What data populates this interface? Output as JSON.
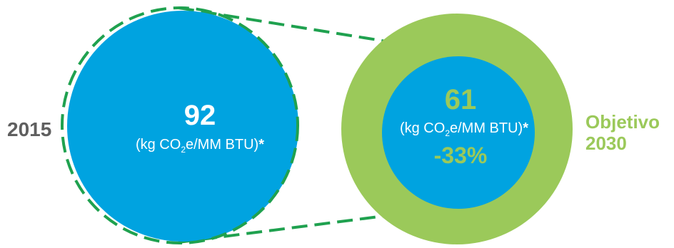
{
  "colors": {
    "blue": "#00a3e0",
    "green": "#9bc95a",
    "dash": "#1fa14f",
    "gray": "#5f5f5f"
  },
  "left": {
    "year": "2015",
    "value": "92",
    "unit_prefix": "(kg CO",
    "unit_sub": "2",
    "unit_suffix": "e/MM BTU)",
    "unit_star": "*"
  },
  "right": {
    "label_line1": "Objetivo",
    "label_line2": "2030",
    "value": "61",
    "unit_prefix": "(kg CO",
    "unit_sub": "2",
    "unit_suffix": "e/MM BTU)",
    "unit_star": "*",
    "change": "-33%"
  }
}
